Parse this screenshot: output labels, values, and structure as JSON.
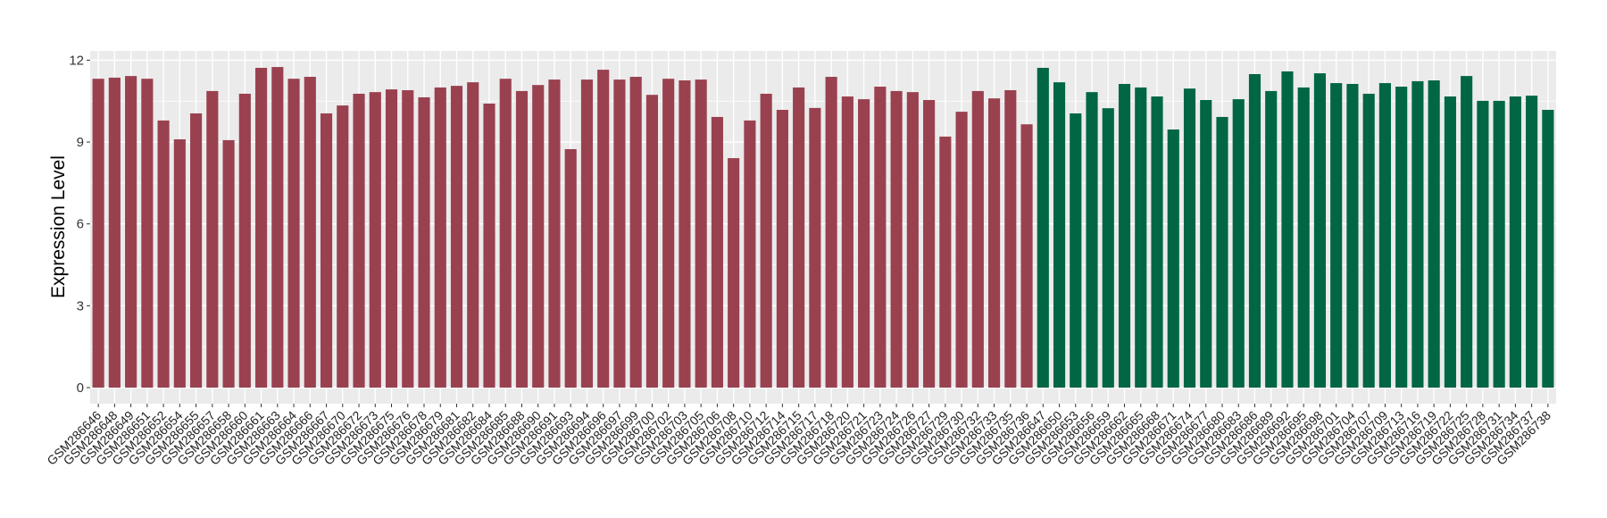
{
  "chart_data": {
    "type": "bar",
    "title": "",
    "xlabel": "",
    "ylabel": "Expression Level",
    "ylim": [
      0,
      12.4
    ],
    "yticks": [
      0,
      3,
      6,
      9,
      12
    ],
    "grid": true,
    "legend": "none",
    "colors": {
      "group1": "#9A4150",
      "group2": "#006644",
      "panel": "#EBEBEB",
      "grid": "#FFFFFF"
    },
    "categories": [
      "GSM286646",
      "GSM286648",
      "GSM286649",
      "GSM286651",
      "GSM286652",
      "GSM286654",
      "GSM286655",
      "GSM286657",
      "GSM286658",
      "GSM286660",
      "GSM286661",
      "GSM286663",
      "GSM286664",
      "GSM286666",
      "GSM286667",
      "GSM286670",
      "GSM286672",
      "GSM286673",
      "GSM286675",
      "GSM286676",
      "GSM286678",
      "GSM286679",
      "GSM286681",
      "GSM286682",
      "GSM286684",
      "GSM286685",
      "GSM286688",
      "GSM286690",
      "GSM286691",
      "GSM286693",
      "GSM286694",
      "GSM286696",
      "GSM286697",
      "GSM286699",
      "GSM286700",
      "GSM286702",
      "GSM286703",
      "GSM286705",
      "GSM286706",
      "GSM286708",
      "GSM286710",
      "GSM286712",
      "GSM286714",
      "GSM286715",
      "GSM286717",
      "GSM286718",
      "GSM286720",
      "GSM286721",
      "GSM286723",
      "GSM286724",
      "GSM286726",
      "GSM286727",
      "GSM286729",
      "GSM286730",
      "GSM286732",
      "GSM286733",
      "GSM286735",
      "GSM286736",
      "GSM286647",
      "GSM286650",
      "GSM286653",
      "GSM286656",
      "GSM286659",
      "GSM286662",
      "GSM286665",
      "GSM286668",
      "GSM286671",
      "GSM286674",
      "GSM286677",
      "GSM286680",
      "GSM286683",
      "GSM286686",
      "GSM286689",
      "GSM286692",
      "GSM286695",
      "GSM286698",
      "GSM286701",
      "GSM286704",
      "GSM286707",
      "GSM286709",
      "GSM286713",
      "GSM286716",
      "GSM286719",
      "GSM286722",
      "GSM286725",
      "GSM286728",
      "GSM286731",
      "GSM286734",
      "GSM286737",
      "GSM286738"
    ],
    "values": [
      11.32,
      11.36,
      11.42,
      11.32,
      9.79,
      9.1,
      10.05,
      10.87,
      9.07,
      10.77,
      11.72,
      11.75,
      11.32,
      11.39,
      10.05,
      10.34,
      10.77,
      10.83,
      10.93,
      10.9,
      10.64,
      11.0,
      11.06,
      11.19,
      10.41,
      11.32,
      10.87,
      11.09,
      11.29,
      8.74,
      11.29,
      11.65,
      11.29,
      11.39,
      10.73,
      11.32,
      11.26,
      11.29,
      9.92,
      8.41,
      9.79,
      10.77,
      10.18,
      11.0,
      10.25,
      11.39,
      10.67,
      10.57,
      11.03,
      10.87,
      10.83,
      10.54,
      9.2,
      10.11,
      10.87,
      10.6,
      10.9,
      9.65,
      11.72,
      11.19,
      10.05,
      10.83,
      10.24,
      11.13,
      11.0,
      10.67,
      9.46,
      10.96,
      10.54,
      9.92,
      10.57,
      11.49,
      10.87,
      11.59,
      11.0,
      11.52,
      11.16,
      11.13,
      10.77,
      11.16,
      11.03,
      11.23,
      11.26,
      10.67,
      11.42,
      10.51,
      10.51,
      10.67,
      10.7,
      10.18
    ],
    "groups": [
      1,
      1,
      1,
      1,
      1,
      1,
      1,
      1,
      1,
      1,
      1,
      1,
      1,
      1,
      1,
      1,
      1,
      1,
      1,
      1,
      1,
      1,
      1,
      1,
      1,
      1,
      1,
      1,
      1,
      1,
      1,
      1,
      1,
      1,
      1,
      1,
      1,
      1,
      1,
      1,
      1,
      1,
      1,
      1,
      1,
      1,
      1,
      1,
      1,
      1,
      1,
      1,
      1,
      1,
      1,
      1,
      1,
      1,
      2,
      2,
      2,
      2,
      2,
      2,
      2,
      2,
      2,
      2,
      2,
      2,
      2,
      2,
      2,
      2,
      2,
      2,
      2,
      2,
      2,
      2,
      2,
      2,
      2,
      2,
      2,
      2,
      2,
      2,
      2,
      2
    ]
  }
}
